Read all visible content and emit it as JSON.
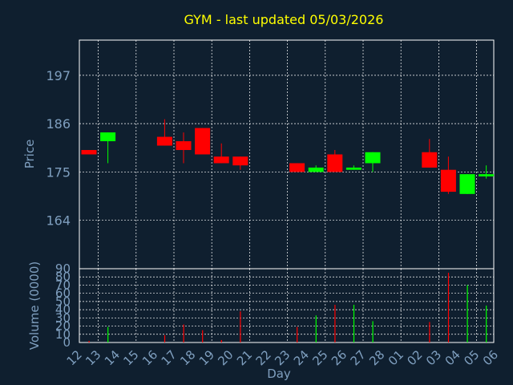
{
  "title": "GYM - last updated 05/03/2026",
  "colors": {
    "background": "#0f1f2f",
    "title": "#ffff00",
    "axis_text": "#7f9fbf",
    "frame": "#ffffff",
    "grid": "#ffffff",
    "up": "#00ff00",
    "down": "#ff0000"
  },
  "chart_data": [
    {
      "type": "candlestick",
      "title": "GYM - last updated 05/03/2026",
      "ylabel": "Price",
      "ylim": [
        153,
        205
      ],
      "yticks": [
        164,
        175,
        186,
        197
      ],
      "grid": true,
      "x_ticks": [
        "12",
        "13",
        "14",
        "15",
        "16",
        "17",
        "18",
        "19",
        "20",
        "21",
        "22",
        "23",
        "24",
        "25",
        "26",
        "27",
        "28",
        "01",
        "02",
        "03",
        "04",
        "05",
        "06"
      ],
      "candles": [
        {
          "day": "12",
          "open": 180.0,
          "high": 180.0,
          "low": 179.0,
          "close": 179.0
        },
        {
          "day": "13",
          "open": 182.0,
          "high": 184.0,
          "low": 177.0,
          "close": 184.0
        },
        {
          "day": "16",
          "open": 183.0,
          "high": 187.0,
          "low": 181.0,
          "close": 181.0
        },
        {
          "day": "17",
          "open": 182.0,
          "high": 184.0,
          "low": 177.0,
          "close": 180.0
        },
        {
          "day": "18",
          "open": 185.0,
          "high": 185.0,
          "low": 179.0,
          "close": 179.0
        },
        {
          "day": "19",
          "open": 178.5,
          "high": 181.5,
          "low": 177.0,
          "close": 177.0
        },
        {
          "day": "20",
          "open": 178.5,
          "high": 178.5,
          "low": 175.5,
          "close": 176.5
        },
        {
          "day": "23",
          "open": 177.0,
          "high": 177.0,
          "low": 175.0,
          "close": 175.0
        },
        {
          "day": "24",
          "open": 175.0,
          "high": 176.5,
          "low": 175.0,
          "close": 176.0
        },
        {
          "day": "25",
          "open": 179.0,
          "high": 180.0,
          "low": 175.0,
          "close": 175.0
        },
        {
          "day": "26",
          "open": 175.5,
          "high": 176.5,
          "low": 175.5,
          "close": 176.0
        },
        {
          "day": "27",
          "open": 177.0,
          "high": 179.5,
          "low": 175.0,
          "close": 179.5
        },
        {
          "day": "02",
          "open": 179.5,
          "high": 182.5,
          "low": 176.0,
          "close": 176.0
        },
        {
          "day": "03",
          "open": 175.5,
          "high": 178.5,
          "low": 170.0,
          "close": 170.5
        },
        {
          "day": "04",
          "open": 170.0,
          "high": 174.5,
          "low": 170.0,
          "close": 174.5
        },
        {
          "day": "05",
          "open": 174.0,
          "high": 176.5,
          "low": 173.5,
          "close": 174.5
        }
      ]
    },
    {
      "type": "bar",
      "xlabel": "Day",
      "ylabel": "Volume (0000)",
      "ylim": [
        0,
        90
      ],
      "yticks": [
        0,
        10,
        20,
        30,
        40,
        50,
        60,
        70,
        80,
        90
      ],
      "grid": true,
      "x_ticks": [
        "12",
        "13",
        "14",
        "15",
        "16",
        "17",
        "18",
        "19",
        "20",
        "21",
        "22",
        "23",
        "24",
        "25",
        "26",
        "27",
        "28",
        "01",
        "02",
        "03",
        "04",
        "05",
        "06"
      ],
      "bars": [
        {
          "day": "12",
          "value": 2,
          "direction": "down"
        },
        {
          "day": "13",
          "value": 19,
          "direction": "up"
        },
        {
          "day": "16",
          "value": 9,
          "direction": "down"
        },
        {
          "day": "17",
          "value": 22,
          "direction": "down"
        },
        {
          "day": "18",
          "value": 15,
          "direction": "down"
        },
        {
          "day": "19",
          "value": 3,
          "direction": "down"
        },
        {
          "day": "20",
          "value": 38,
          "direction": "down"
        },
        {
          "day": "23",
          "value": 19,
          "direction": "down"
        },
        {
          "day": "24",
          "value": 33,
          "direction": "up"
        },
        {
          "day": "25",
          "value": 46,
          "direction": "down"
        },
        {
          "day": "26",
          "value": 46,
          "direction": "up"
        },
        {
          "day": "27",
          "value": 26,
          "direction": "up"
        },
        {
          "day": "02",
          "value": 25,
          "direction": "down"
        },
        {
          "day": "03",
          "value": 85,
          "direction": "down"
        },
        {
          "day": "04",
          "value": 70,
          "direction": "up"
        },
        {
          "day": "05",
          "value": 45,
          "direction": "up"
        }
      ]
    }
  ]
}
